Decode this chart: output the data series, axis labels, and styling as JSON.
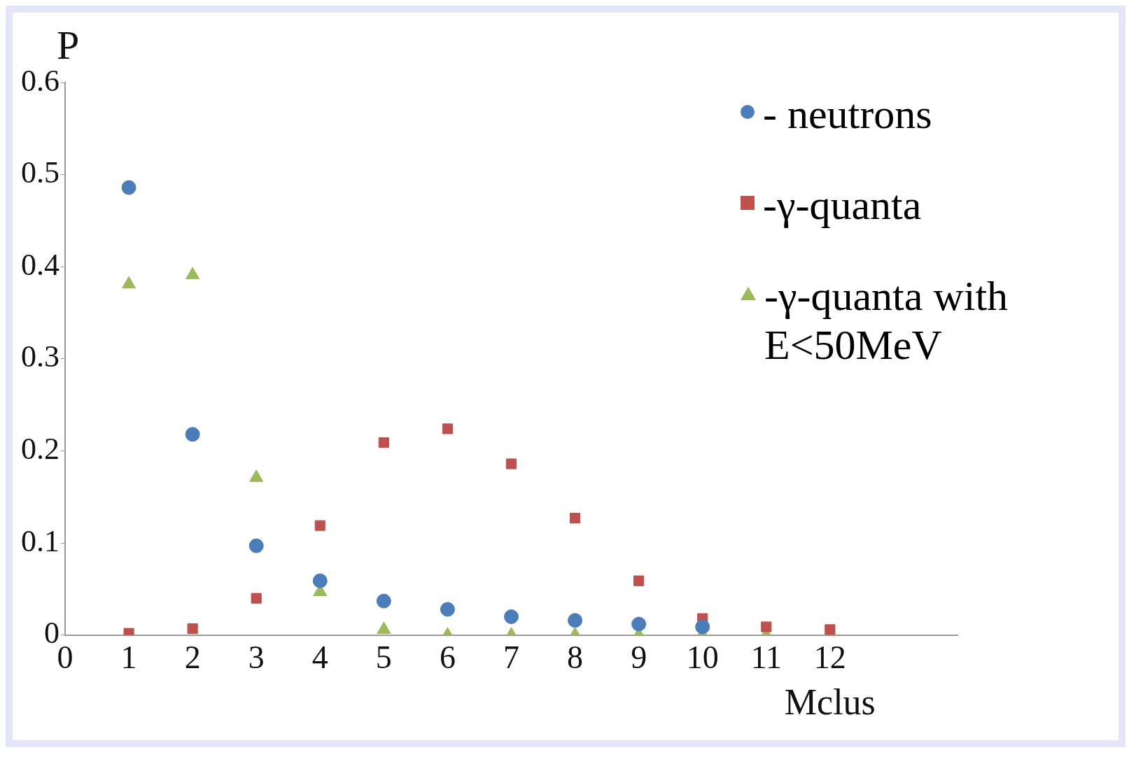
{
  "chart_data": {
    "type": "scatter",
    "xlabel": "Mclus",
    "ylabel": "P",
    "x": [
      1,
      2,
      3,
      4,
      5,
      6,
      7,
      8,
      9,
      10,
      11,
      12
    ],
    "series": [
      {
        "name": "- neutrons",
        "color": "#4a7ebb",
        "marker": "circle",
        "values": [
          0.486,
          0.218,
          0.097,
          0.059,
          0.037,
          0.028,
          0.02,
          0.016,
          0.012,
          0.009,
          null,
          null
        ]
      },
      {
        "name": "-γ-quanta",
        "color": "#c0504d",
        "marker": "square",
        "values": [
          0.002,
          0.007,
          0.04,
          0.119,
          0.209,
          0.224,
          0.186,
          0.127,
          0.059,
          0.018,
          0.009,
          0.006
        ]
      },
      {
        "name": "-γ-quanta with E<50MeV",
        "color": "#9bbb59",
        "marker": "triangle",
        "values": [
          0.381,
          0.391,
          0.171,
          0.047,
          0.006,
          0,
          0,
          0,
          0,
          0,
          0,
          0
        ]
      }
    ],
    "xlim": [
      0,
      14
    ],
    "xticks": [
      0,
      1,
      2,
      3,
      4,
      5,
      6,
      7,
      8,
      9,
      10,
      11,
      12
    ],
    "ylim": [
      0,
      0.6
    ],
    "yticks": [
      0,
      0.1,
      0.2,
      0.3,
      0.4,
      0.5,
      0.6
    ],
    "grid": false,
    "legend": "top right"
  }
}
